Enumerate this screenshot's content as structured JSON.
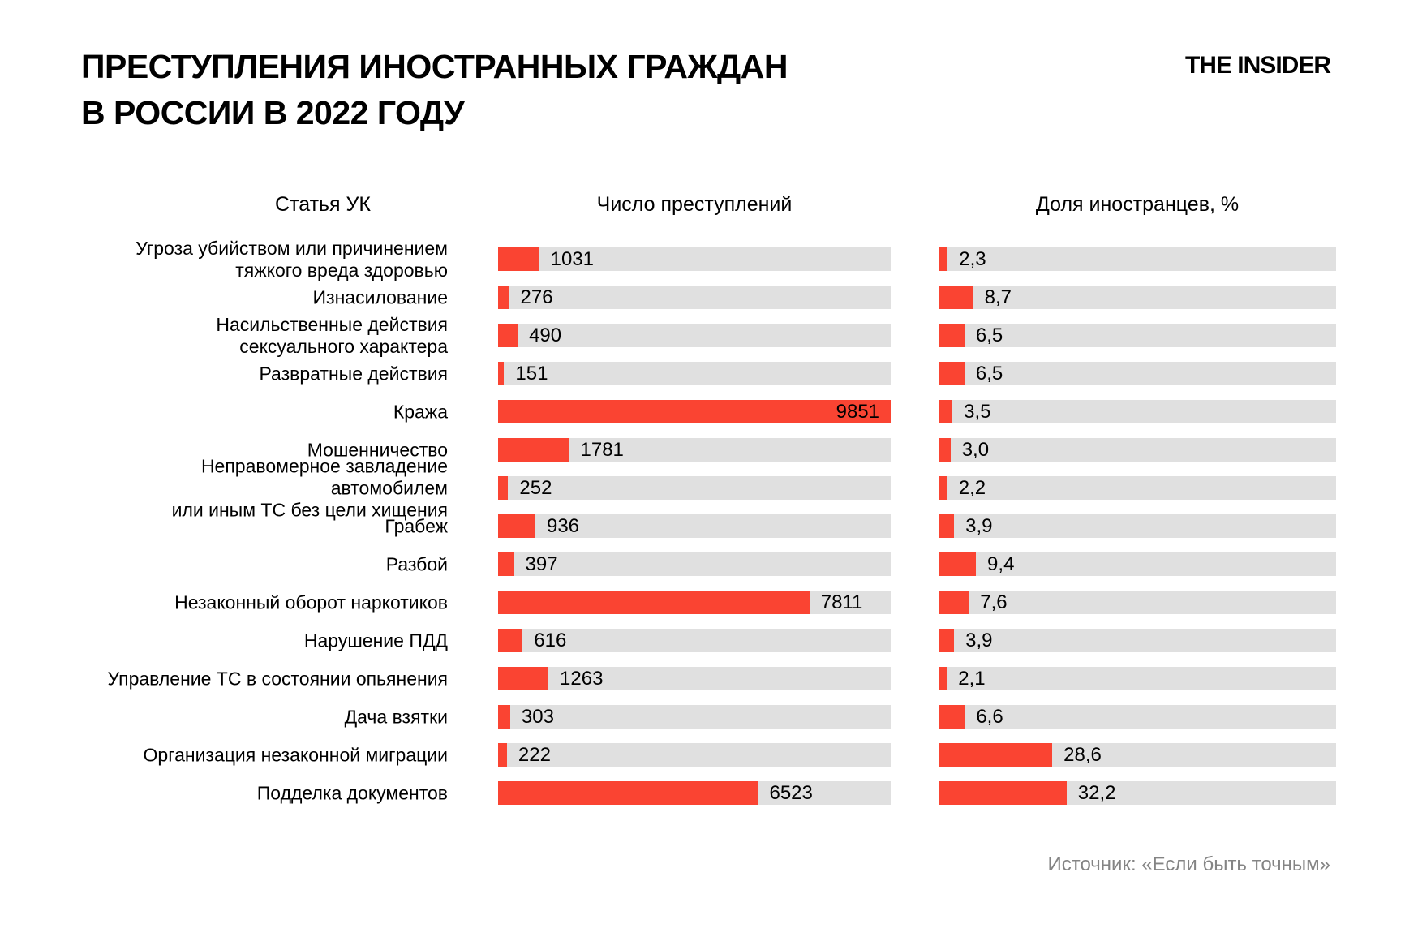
{
  "page": {
    "title": "ПРЕСТУПЛЕНИЯ ИНОСТРАННЫХ ГРАЖДАН\nВ РОССИИ В 2022 ГОДУ",
    "brand": "THE INSIDER",
    "source": "Источник: «Если быть точным»"
  },
  "chart_data": {
    "type": "bar",
    "orientation": "horizontal",
    "title": "Преступления иностранных граждан в России в 2022 году",
    "column_headers": [
      "Статья УК",
      "Число преступлений",
      "Доля иностранцев, %"
    ],
    "categories": [
      "Угроза убийством или причинением\nтяжкого вреда здоровью",
      "Изнасилование",
      "Насильственные действия\nсексуального характера",
      "Развратные действия",
      "Кража",
      "Мошенничество",
      "Неправомерное завладение автомобилем\nили иным ТС без цели хищения",
      "Грабеж",
      "Разбой",
      "Незаконный оборот наркотиков",
      "Нарушение ПДД",
      "Управление ТС в состоянии опьянения",
      "Дача взятки",
      "Организация незаконной миграции",
      "Подделка документов"
    ],
    "series": [
      {
        "name": "Число преступлений",
        "values": [
          1031,
          276,
          490,
          151,
          9851,
          1781,
          252,
          936,
          397,
          7811,
          616,
          1263,
          303,
          222,
          6523
        ],
        "labels": [
          "1031",
          "276",
          "490",
          "151",
          "9851",
          "1781",
          "252",
          "936",
          "397",
          "7811",
          "616",
          "1263",
          "303",
          "222",
          "6523"
        ],
        "axis_max": 9851
      },
      {
        "name": "Доля иностранцев, %",
        "values": [
          2.3,
          8.7,
          6.5,
          6.5,
          3.5,
          3.0,
          2.2,
          3.9,
          9.4,
          7.6,
          3.9,
          2.1,
          6.6,
          28.6,
          32.2
        ],
        "labels": [
          "2,3",
          "8,7",
          "6,5",
          "6,5",
          "3,5",
          "3,0",
          "2,2",
          "3,9",
          "9,4",
          "7,6",
          "3,9",
          "2,1",
          "6,6",
          "28,6",
          "32,2"
        ],
        "axis_max": 100
      }
    ],
    "colors": {
      "bar": "#fa4432",
      "track": "#e0e0e0",
      "text": "#000000",
      "source_text": "#848484"
    },
    "legend_position": "none",
    "grid": false
  }
}
